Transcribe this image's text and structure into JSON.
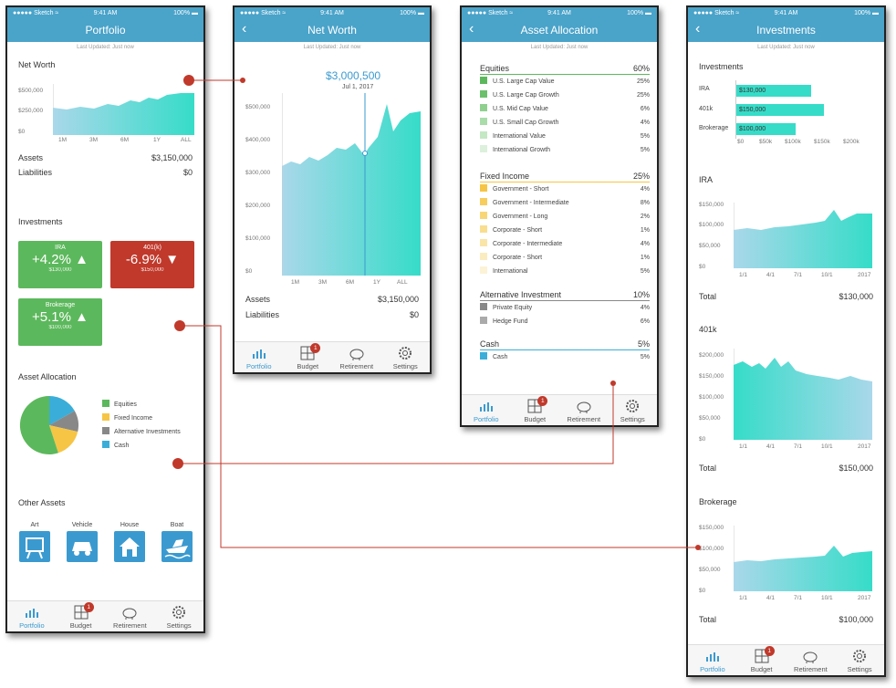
{
  "status": {
    "carrier": "●●●●● Sketch ≈",
    "time": "9:41 AM",
    "battery": "100% ▬"
  },
  "tabs": [
    {
      "label": "Portfolio",
      "icon": "bar-chart-icon"
    },
    {
      "label": "Budget",
      "icon": "calculator-icon",
      "badge": "1"
    },
    {
      "label": "Retirement",
      "icon": "piggy-bank-icon"
    },
    {
      "label": "Settings",
      "icon": "gear-icon"
    }
  ],
  "colors": {
    "accent": "#4aa3c9",
    "area": "#36dcc8",
    "green": "#5cb85c",
    "red": "#c0392b",
    "connector": "#c0392b"
  },
  "portfolio": {
    "title": "Portfolio",
    "updated": "Last Updated: Just now",
    "net_worth_title": "Net Worth",
    "y_ticks": [
      "$500,000",
      "$250,000",
      "$0"
    ],
    "x_ticks": [
      "1M",
      "3M",
      "6M",
      "1Y",
      "ALL"
    ],
    "assets_label": "Assets",
    "assets_value": "$3,150,000",
    "liabilities_label": "Liabilities",
    "liabilities_value": "$0",
    "investments_title": "Investments",
    "cards": [
      {
        "label": "IRA",
        "value": "+4.2% ▲",
        "sub": "$130,000"
      },
      {
        "label": "401(k)",
        "value": "-6.9% ▼",
        "sub": "$150,000"
      },
      {
        "label": "Brokerage",
        "value": "+5.1% ▲",
        "sub": "$100,000"
      }
    ],
    "allocation_title": "Asset Allocation",
    "legend": [
      "Equities",
      "Fixed Income",
      "Alternative Investments",
      "Cash"
    ],
    "pie": [
      60,
      25,
      10,
      5
    ],
    "other_title": "Other Assets",
    "other": [
      {
        "label": "Art",
        "icon": "easel-icon"
      },
      {
        "label": "Vehicle",
        "icon": "car-icon"
      },
      {
        "label": "House",
        "icon": "house-icon"
      },
      {
        "label": "Boat",
        "icon": "boat-icon"
      }
    ]
  },
  "net_worth": {
    "title": "Net Worth",
    "updated": "Last Updated: Just now",
    "callout_value": "$3,000,500",
    "callout_date": "Jul 1, 2017",
    "y_ticks": [
      "$500,000",
      "$400,000",
      "$300,000",
      "$200,000",
      "$100,000",
      "$0"
    ],
    "x_ticks": [
      "1M",
      "3M",
      "6M",
      "1Y",
      "ALL"
    ],
    "assets_label": "Assets",
    "assets_value": "$3,150,000",
    "liabilities_label": "Liabilities",
    "liabilities_value": "$0"
  },
  "allocation": {
    "title": "Asset Allocation",
    "updated": "Last Updated: Just now",
    "groups": [
      {
        "name": "Equities",
        "pct": "60%",
        "items": [
          {
            "label": "U.S. Large Cap Value",
            "pct": "25%"
          },
          {
            "label": "U.S. Large Cap Growth",
            "pct": "25%"
          },
          {
            "label": "U.S. Mid Cap Value",
            "pct": "6%"
          },
          {
            "label": "U.S. Small Cap Growth",
            "pct": "4%"
          },
          {
            "label": "International Value",
            "pct": "5%"
          },
          {
            "label": "International Growth",
            "pct": "5%"
          }
        ]
      },
      {
        "name": "Fixed Income",
        "pct": "25%",
        "items": [
          {
            "label": "Government - Short",
            "pct": "4%"
          },
          {
            "label": "Government - Intermediate",
            "pct": "8%"
          },
          {
            "label": "Government - Long",
            "pct": "2%"
          },
          {
            "label": "Corporate - Short",
            "pct": "1%"
          },
          {
            "label": "Corporate - Intermediate",
            "pct": "4%"
          },
          {
            "label": "Corporate - Short",
            "pct": "1%"
          },
          {
            "label": "International",
            "pct": "5%"
          }
        ]
      },
      {
        "name": "Alternative Investment",
        "pct": "10%",
        "items": [
          {
            "label": "Private Equity",
            "pct": "4%"
          },
          {
            "label": "Hedge Fund",
            "pct": "6%"
          }
        ]
      },
      {
        "name": "Cash",
        "pct": "5%",
        "items": [
          {
            "label": "Cash",
            "pct": "5%"
          }
        ]
      }
    ]
  },
  "investments": {
    "title": "Investments",
    "updated": "Last Updated: Just now",
    "section_title": "Investments",
    "bars": [
      {
        "label": "IRA",
        "text": "$130,000",
        "value": 130000
      },
      {
        "label": "401k",
        "text": "$150,000",
        "value": 150000
      },
      {
        "label": "Brokerage",
        "text": "$100,000",
        "value": 100000
      }
    ],
    "bar_ticks": [
      "$0",
      "$50k",
      "$100k",
      "$150k",
      "$200k"
    ],
    "charts": [
      {
        "title": "IRA",
        "y_ticks": [
          "$150,000",
          "$100,000",
          "$50,000",
          "$0"
        ],
        "total_label": "Total",
        "total": "$130,000"
      },
      {
        "title": "401k",
        "y_ticks": [
          "$200,000",
          "$150,000",
          "$100,000",
          "$50,000",
          "$0"
        ],
        "total_label": "Total",
        "total": "$150,000"
      },
      {
        "title": "Brokerage",
        "y_ticks": [
          "$150,000",
          "$100,000",
          "$50,000",
          "$0"
        ],
        "total_label": "Total",
        "total": "$100,000"
      }
    ],
    "x_ticks": [
      "1/1",
      "4/1",
      "7/1",
      "10/1",
      "2017"
    ]
  }
}
